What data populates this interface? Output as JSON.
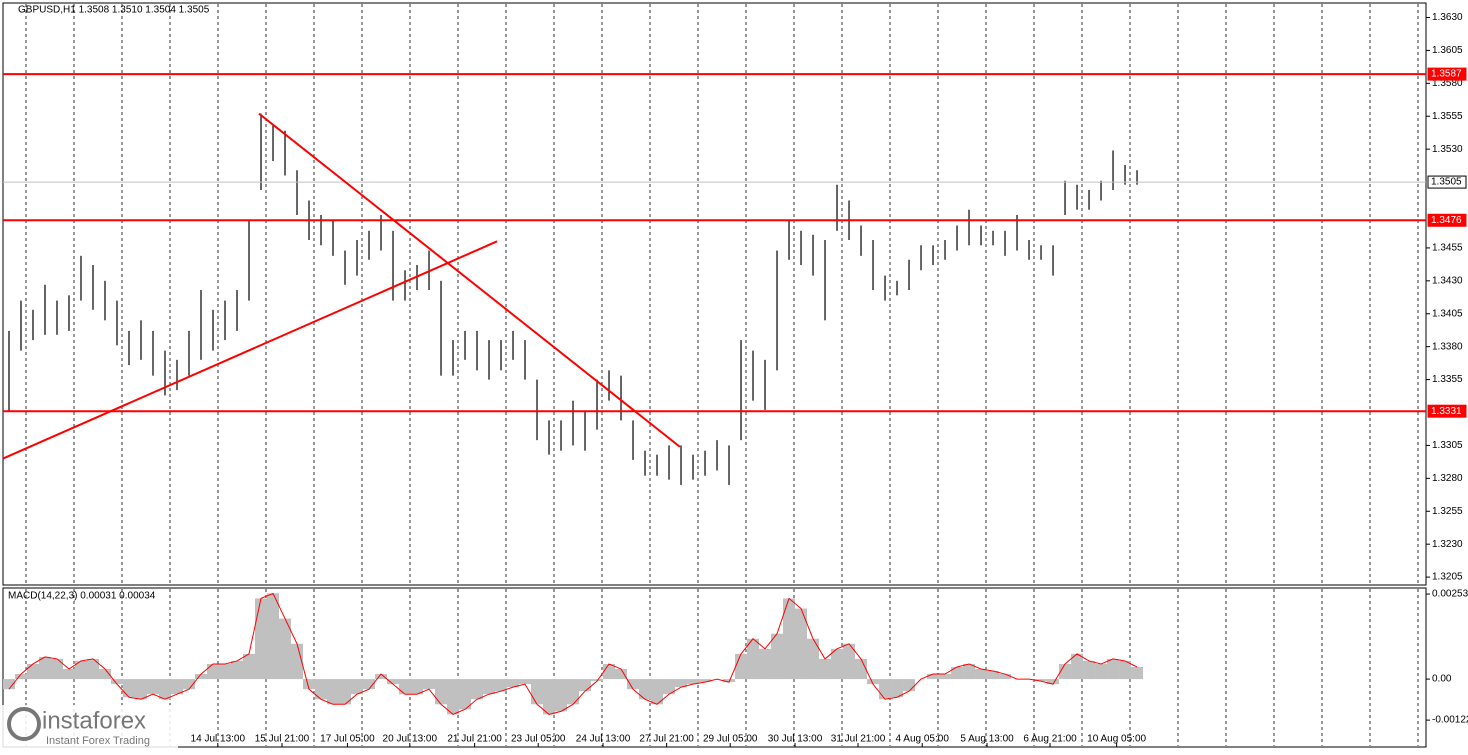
{
  "chart_data": [
    {
      "type": "ohlc",
      "title": "GBPUSD,H1  1.3508 1.3510 1.3504 1.3505",
      "color": "#000000",
      "high": [
        1.3392,
        1.3415,
        1.3408,
        1.3427,
        1.3415,
        1.3419,
        1.3449,
        1.3442,
        1.343,
        1.3415,
        1.3392,
        1.34,
        1.3392,
        1.3377,
        1.337,
        1.3392,
        1.3423,
        1.3408,
        1.3415,
        1.3423,
        1.3476,
        1.3557,
        1.3548,
        1.3544,
        1.3514,
        1.3491,
        1.348,
        1.3476,
        1.3453,
        1.3461,
        1.3468,
        1.348,
        1.3468,
        1.3438,
        1.3442,
        1.3453,
        1.343,
        1.3385,
        1.3392,
        1.3392,
        1.3385,
        1.3385,
        1.3392,
        1.3385,
        1.3355,
        1.3324,
        1.3324,
        1.3339,
        1.3331,
        1.3355,
        1.3362,
        1.3358,
        1.3324,
        1.3301,
        1.3298,
        1.3305,
        1.3305,
        1.3298,
        1.3301,
        1.3309,
        1.3305,
        1.3385,
        1.3377,
        1.337,
        1.3453,
        1.3476,
        1.3468,
        1.3465,
        1.3461,
        1.3503,
        1.3491,
        1.3472,
        1.3461,
        1.3434,
        1.343,
        1.3446,
        1.3457,
        1.3457,
        1.3461,
        1.3472,
        1.3484,
        1.3472,
        1.3468,
        1.3468,
        1.348,
        1.3461,
        1.3457,
        1.3457,
        1.3506,
        1.3503,
        1.3499,
        1.3506,
        1.3529,
        1.3518,
        1.3514
      ],
      "low": [
        1.3331,
        1.3377,
        1.3385,
        1.3389,
        1.3389,
        1.3392,
        1.3415,
        1.3408,
        1.34,
        1.3381,
        1.3366,
        1.337,
        1.3358,
        1.3343,
        1.3347,
        1.3358,
        1.337,
        1.3377,
        1.3385,
        1.3392,
        1.3415,
        1.3499,
        1.3521,
        1.351,
        1.348,
        1.3461,
        1.3457,
        1.3449,
        1.3427,
        1.3434,
        1.3446,
        1.3453,
        1.3415,
        1.3415,
        1.3423,
        1.3423,
        1.3358,
        1.3358,
        1.337,
        1.3362,
        1.3355,
        1.3362,
        1.337,
        1.3355,
        1.3309,
        1.3298,
        1.3301,
        1.3305,
        1.3301,
        1.3317,
        1.3339,
        1.3324,
        1.3294,
        1.3282,
        1.3282,
        1.3279,
        1.3275,
        1.3279,
        1.3282,
        1.3286,
        1.3275,
        1.3309,
        1.3339,
        1.3332,
        1.3362,
        1.3446,
        1.3442,
        1.3434,
        1.34,
        1.3468,
        1.3461,
        1.3449,
        1.3423,
        1.3415,
        1.3419,
        1.3423,
        1.3438,
        1.3442,
        1.3446,
        1.3453,
        1.3457,
        1.3457,
        1.3457,
        1.3449,
        1.3453,
        1.3446,
        1.3446,
        1.3434,
        1.348,
        1.3484,
        1.3484,
        1.3491,
        1.3499,
        1.3503,
        1.3503
      ],
      "xlim": [
        -0.5,
        118.08
      ],
      "xticks": [
        {
          "value": 17.4,
          "label": "14 Jul 13:00"
        },
        {
          "value": 22.75,
          "label": "15 Jul 21:00"
        },
        {
          "value": 28.2,
          "label": "17 Jul 05:00"
        },
        {
          "value": 33.4,
          "label": "20 Jul 13:00"
        },
        {
          "value": 38.8,
          "label": "21 Jul 21:00"
        },
        {
          "value": 44.1,
          "label": "23 Jul 05:00"
        },
        {
          "value": 49.5,
          "label": "24 Jul 13:00"
        },
        {
          "value": 54.8,
          "label": "27 Jul 21:00"
        },
        {
          "value": 60.1,
          "label": "29 Jul 05:00"
        },
        {
          "value": 65.5,
          "label": "30 Jul 13:00"
        },
        {
          "value": 70.75,
          "label": "31 Jul 21:00"
        },
        {
          "value": 76.1,
          "label": "4 Aug 05:00"
        },
        {
          "value": 81.5,
          "label": "5 Aug 13:00"
        },
        {
          "value": 86.75,
          "label": "6 Aug 21:00"
        },
        {
          "value": 92.3,
          "label": "10 Aug 05:00"
        }
      ],
      "ylim": [
        1.3199,
        1.3641
      ],
      "yticks": [
        {
          "value": 1.363,
          "label": "1.3630"
        },
        {
          "value": 1.3605,
          "label": "1.3605"
        },
        {
          "value": 1.358,
          "label": "1.3580"
        },
        {
          "value": 1.3555,
          "label": "1.3555"
        },
        {
          "value": 1.353,
          "label": "1.3530"
        },
        {
          "value": 1.3455,
          "label": "1.3455"
        },
        {
          "value": 1.343,
          "label": "1.3430"
        },
        {
          "value": 1.3405,
          "label": "1.3405"
        },
        {
          "value": 1.338,
          "label": "1.3380"
        },
        {
          "value": 1.3355,
          "label": "1.3355"
        },
        {
          "value": 1.3305,
          "label": "1.3305"
        },
        {
          "value": 1.328,
          "label": "1.3280"
        },
        {
          "value": 1.3255,
          "label": "1.3255"
        },
        {
          "value": 1.323,
          "label": "1.3230"
        },
        {
          "value": 1.3205,
          "label": "1.3205"
        }
      ],
      "levels": [
        {
          "value": 1.3587,
          "color": "#ff0000"
        },
        {
          "value": 1.3476,
          "color": "#ff0000"
        },
        {
          "value": 1.3331,
          "color": "#ff0000"
        },
        {
          "value": 1.3505,
          "color": "#c0c0c0"
        }
      ],
      "trendlines": [
        {
          "x": [
            -0.5,
            40.67
          ],
          "y": [
            1.3295,
            1.346
          ],
          "color": "#ff0000"
        },
        {
          "x": [
            20.83,
            55.9
          ],
          "y": [
            1.3557,
            1.3304
          ],
          "color": "#ff0000"
        }
      ]
    },
    {
      "type": "macd",
      "title": "MACD(14,22,3) 0.00031 0.00034",
      "color": "#c0c0c0",
      "line_color": "#ff0000",
      "values": [
        -0.0003,
        0.00015,
        0.00045,
        0.00066,
        0.0006,
        0.0003,
        0.00054,
        0.0006,
        0.0003,
        -0.00015,
        -0.00054,
        -0.0006,
        -0.00045,
        -0.0006,
        -0.00045,
        -0.0003,
        0.00015,
        0.00045,
        0.00045,
        0.00054,
        0.00075,
        0.0024,
        0.00255,
        0.0018,
        0.00105,
        -0.0003,
        -0.0006,
        -0.00075,
        -0.00075,
        -0.00045,
        -0.0003,
        0.00015,
        -0.00015,
        -0.00045,
        -0.00045,
        -0.0003,
        -0.00075,
        -0.00105,
        -0.0009,
        -0.0006,
        -0.00045,
        -0.00036,
        -0.00024,
        -0.00015,
        -0.00075,
        -0.00105,
        -0.00096,
        -0.00075,
        -0.00036,
        -6e-05,
        0.00045,
        0.0003,
        -0.0003,
        -0.0006,
        -0.00075,
        -0.00045,
        -0.00024,
        -0.00015,
        -9e-05,
        0,
        -9e-05,
        0.00075,
        0.0012,
        0.0009,
        0.00135,
        0.0024,
        0.0021,
        0.0012,
        0.0006,
        0.0009,
        0.00105,
        0.0006,
        -0.00015,
        -0.0006,
        -0.00054,
        -0.00036,
        0,
        0.00015,
        0.00015,
        0.00036,
        0.00045,
        0.0003,
        0.00024,
        0.00015,
        0,
        0,
        -6e-05,
        -0.00015,
        0.00045,
        0.00075,
        0.00054,
        0.00045,
        0.0006,
        0.00054,
        0.00036
      ],
      "xlim": [
        -0.5,
        118.08
      ],
      "ylim": [
        -0.00202,
        0.00271
      ],
      "yticks": [
        0.00253,
        {
          "value": 0,
          "label": "0.00"
        },
        -0.00122
      ]
    }
  ],
  "watermark": {
    "brand": "instaforex",
    "tagline": "Instant Forex Trading"
  }
}
